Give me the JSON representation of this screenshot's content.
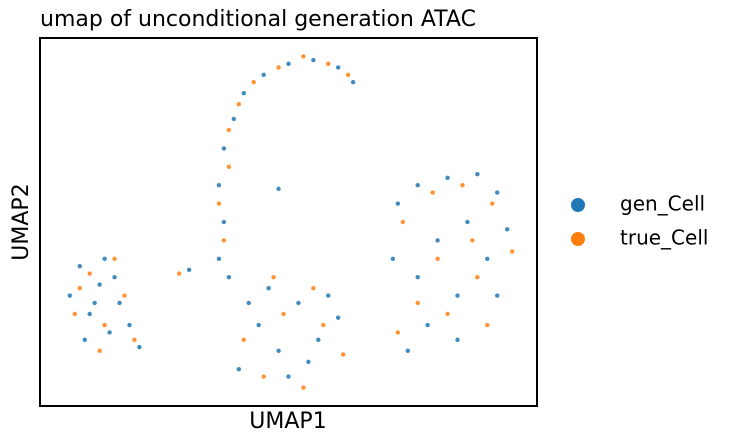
{
  "chart_data": {
    "type": "scatter",
    "title": "umap of unconditional generation ATAC",
    "x_label": "UMAP1",
    "y_label": "UMAP2",
    "xlim": [
      0,
      100
    ],
    "ylim": [
      0,
      100
    ],
    "series": [
      {
        "name": "gen_Cell",
        "color": "#1f77b4",
        "x": [
          6,
          8,
          10,
          12,
          14,
          16,
          18,
          9,
          20,
          13,
          11,
          15,
          40,
          44,
          48,
          52,
          56,
          60,
          46,
          50,
          54,
          42,
          58,
          36,
          37,
          36,
          37,
          39,
          41,
          45,
          50,
          55,
          60,
          63,
          38,
          72,
          76,
          82,
          88,
          92,
          94,
          90,
          84,
          78,
          74,
          71,
          80,
          86,
          76,
          92,
          84,
          48,
          30
        ],
        "values": [
          30,
          38,
          25,
          33,
          20,
          28,
          22,
          18,
          16,
          40,
          28,
          35,
          10,
          22,
          15,
          28,
          18,
          24,
          32,
          8,
          12,
          28,
          30,
          40,
          50,
          60,
          70,
          78,
          85,
          90,
          93,
          94,
          92,
          88,
          35,
          55,
          60,
          62,
          63,
          58,
          48,
          40,
          30,
          22,
          15,
          40,
          45,
          50,
          35,
          30,
          18,
          59,
          37
        ]
      },
      {
        "name": "true_Cell",
        "color": "#ff7f0e",
        "x": [
          7,
          10,
          13,
          17,
          19,
          8,
          12,
          15,
          41,
          45,
          49,
          53,
          57,
          61,
          47,
          55,
          37,
          36,
          38,
          38,
          40,
          43,
          48,
          53,
          58,
          62,
          73,
          79,
          85,
          91,
          95,
          88,
          82,
          76,
          72,
          80,
          87,
          90,
          28
        ],
        "values": [
          25,
          36,
          22,
          30,
          18,
          32,
          15,
          40,
          18,
          8,
          25,
          5,
          22,
          14,
          35,
          32,
          45,
          55,
          65,
          75,
          82,
          88,
          92,
          95,
          93,
          90,
          50,
          58,
          60,
          55,
          42,
          35,
          25,
          28,
          20,
          40,
          45,
          22,
          36
        ]
      }
    ]
  }
}
